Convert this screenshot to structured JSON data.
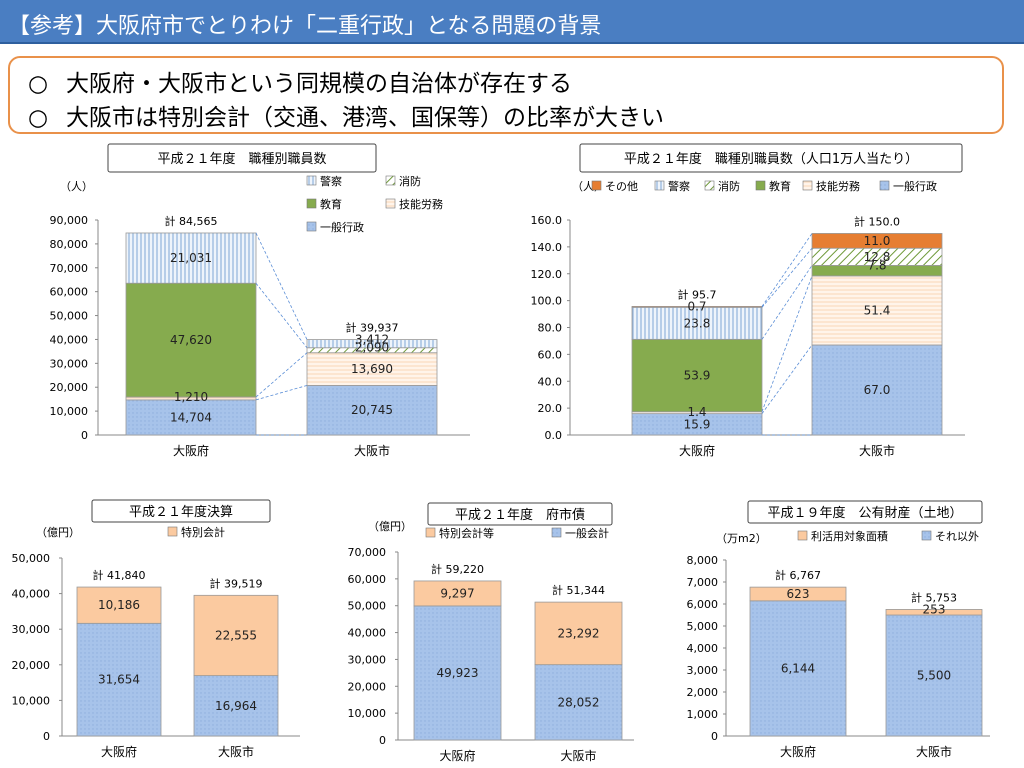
{
  "header": {
    "title": "【参考】大阪府市でとりわけ「二重行政」となる問題の背景"
  },
  "bullets": [
    {
      "mark": "○",
      "text": "大阪府・大阪市という同規模の自治体が存在する"
    },
    {
      "mark": "○",
      "text": "大阪市は特別会計（交通、港湾、国保等）の比率が大きい"
    }
  ],
  "colors": {
    "一般行政": "#9fbde8",
    "技能労務": "#fde4cf",
    "教育": "#86ab4e",
    "消防": "#fff",
    "警察": "#ddebf7",
    "その他": "#e67e32",
    "特別会計": "#fbcaa0",
    "一般会計": "#9fbde8",
    "利活用対象面積": "#fbcaa0",
    "それ以外": "#9fbde8"
  },
  "chart_data": [
    {
      "type": "bar",
      "stacked": true,
      "title": "平成２１年度　職種別職員数",
      "unit": "（人）",
      "categories": [
        "大阪府",
        "大阪市"
      ],
      "ylim": [
        0,
        90000
      ],
      "yticks": [
        "0",
        "10,000",
        "20,000",
        "30,000",
        "40,000",
        "50,000",
        "60,000",
        "70,000",
        "80,000",
        "90,000"
      ],
      "series": [
        {
          "name": "一般行政",
          "values": [
            14704,
            20745
          ],
          "labels": [
            "14,704",
            "20,745"
          ]
        },
        {
          "name": "技能労務",
          "values": [
            1210,
            13690
          ],
          "labels": [
            "1,210",
            "13,690"
          ]
        },
        {
          "name": "教育",
          "values": [
            47620,
            0
          ],
          "labels": [
            "47,620",
            ""
          ]
        },
        {
          "name": "消防",
          "values": [
            0,
            2090
          ],
          "labels": [
            "",
            "2,090"
          ]
        },
        {
          "name": "警察",
          "values": [
            21031,
            3412
          ],
          "labels": [
            "21,031",
            "3,412"
          ]
        }
      ],
      "totals": [
        "計 84,565",
        "計 39,937"
      ],
      "legend": [
        "警察",
        "消防",
        "教育",
        "技能労務",
        "一般行政"
      ]
    },
    {
      "type": "bar",
      "stacked": true,
      "title": "平成２１年度　職種別職員数（人口1万人当たり）",
      "unit": "（人）",
      "categories": [
        "大阪府",
        "大阪市"
      ],
      "ylim": [
        0,
        160
      ],
      "yticks": [
        "0.0",
        "20.0",
        "40.0",
        "60.0",
        "80.0",
        "100.0",
        "120.0",
        "140.0",
        "160.0"
      ],
      "series": [
        {
          "name": "一般行政",
          "values": [
            15.9,
            67.0
          ],
          "labels": [
            "15.9",
            "67.0"
          ]
        },
        {
          "name": "技能労務",
          "values": [
            1.4,
            51.4
          ],
          "labels": [
            "1.4",
            "51.4"
          ]
        },
        {
          "name": "教育",
          "values": [
            53.9,
            7.8
          ],
          "labels": [
            "53.9",
            "7.8"
          ]
        },
        {
          "name": "消防",
          "values": [
            0,
            12.8
          ],
          "labels": [
            "",
            "12.8"
          ]
        },
        {
          "name": "警察",
          "values": [
            23.8,
            0
          ],
          "labels": [
            "23.8",
            ""
          ]
        },
        {
          "name": "その他",
          "values": [
            0.7,
            11.0
          ],
          "labels": [
            "0.7",
            "11.0"
          ]
        }
      ],
      "totals": [
        "計 95.7",
        "計 150.0"
      ],
      "legend": [
        "その他",
        "警察",
        "消防",
        "教育",
        "技能労務",
        "一般行政"
      ]
    },
    {
      "type": "bar",
      "stacked": true,
      "title": "平成２１年度決算",
      "unit": "（億円）",
      "categories": [
        "大阪府",
        "大阪市"
      ],
      "ylim": [
        0,
        50000
      ],
      "yticks": [
        "0",
        "10,000",
        "20,000",
        "30,000",
        "40,000",
        "50,000"
      ],
      "series": [
        {
          "name": "一般会計",
          "values": [
            31654,
            16964
          ],
          "labels": [
            "31,654",
            "16,964"
          ]
        },
        {
          "name": "特別会計",
          "values": [
            10186,
            22555
          ],
          "labels": [
            "10,186",
            "22,555"
          ]
        }
      ],
      "totals": [
        "計 41,840",
        "計 39,519"
      ],
      "legend": [
        "特別会計"
      ]
    },
    {
      "type": "bar",
      "stacked": true,
      "title": "平成２１年度　府市債",
      "unit": "（億円）",
      "categories": [
        "大阪府",
        "大阪市"
      ],
      "ylim": [
        0,
        70000
      ],
      "yticks": [
        "0",
        "10,000",
        "20,000",
        "30,000",
        "40,000",
        "50,000",
        "60,000",
        "70,000"
      ],
      "series": [
        {
          "name": "一般会計",
          "values": [
            49923,
            28052
          ],
          "labels": [
            "49,923",
            "28,052"
          ]
        },
        {
          "name": "特別会計等",
          "values": [
            9297,
            23292
          ],
          "labels": [
            "9,297",
            "23,292"
          ]
        }
      ],
      "totals": [
        "計 59,220",
        "計 51,344"
      ],
      "legend": [
        "特別会計等",
        "一般会計"
      ]
    },
    {
      "type": "bar",
      "stacked": true,
      "title": "平成１９年度　公有財産（土地）",
      "unit": "（万m2）",
      "categories": [
        "大阪府",
        "大阪市"
      ],
      "ylim": [
        0,
        8000
      ],
      "yticks": [
        "0",
        "1,000",
        "2,000",
        "3,000",
        "4,000",
        "5,000",
        "6,000",
        "7,000",
        "8,000"
      ],
      "series": [
        {
          "name": "それ以外",
          "values": [
            6144,
            5500
          ],
          "labels": [
            "6,144",
            "5,500"
          ]
        },
        {
          "name": "利活用対象面積",
          "values": [
            623,
            253
          ],
          "labels": [
            "623",
            "253"
          ]
        }
      ],
      "totals": [
        "計 6,767",
        "計 5,753"
      ],
      "legend": [
        "利活用対象面積",
        "それ以外"
      ]
    }
  ]
}
